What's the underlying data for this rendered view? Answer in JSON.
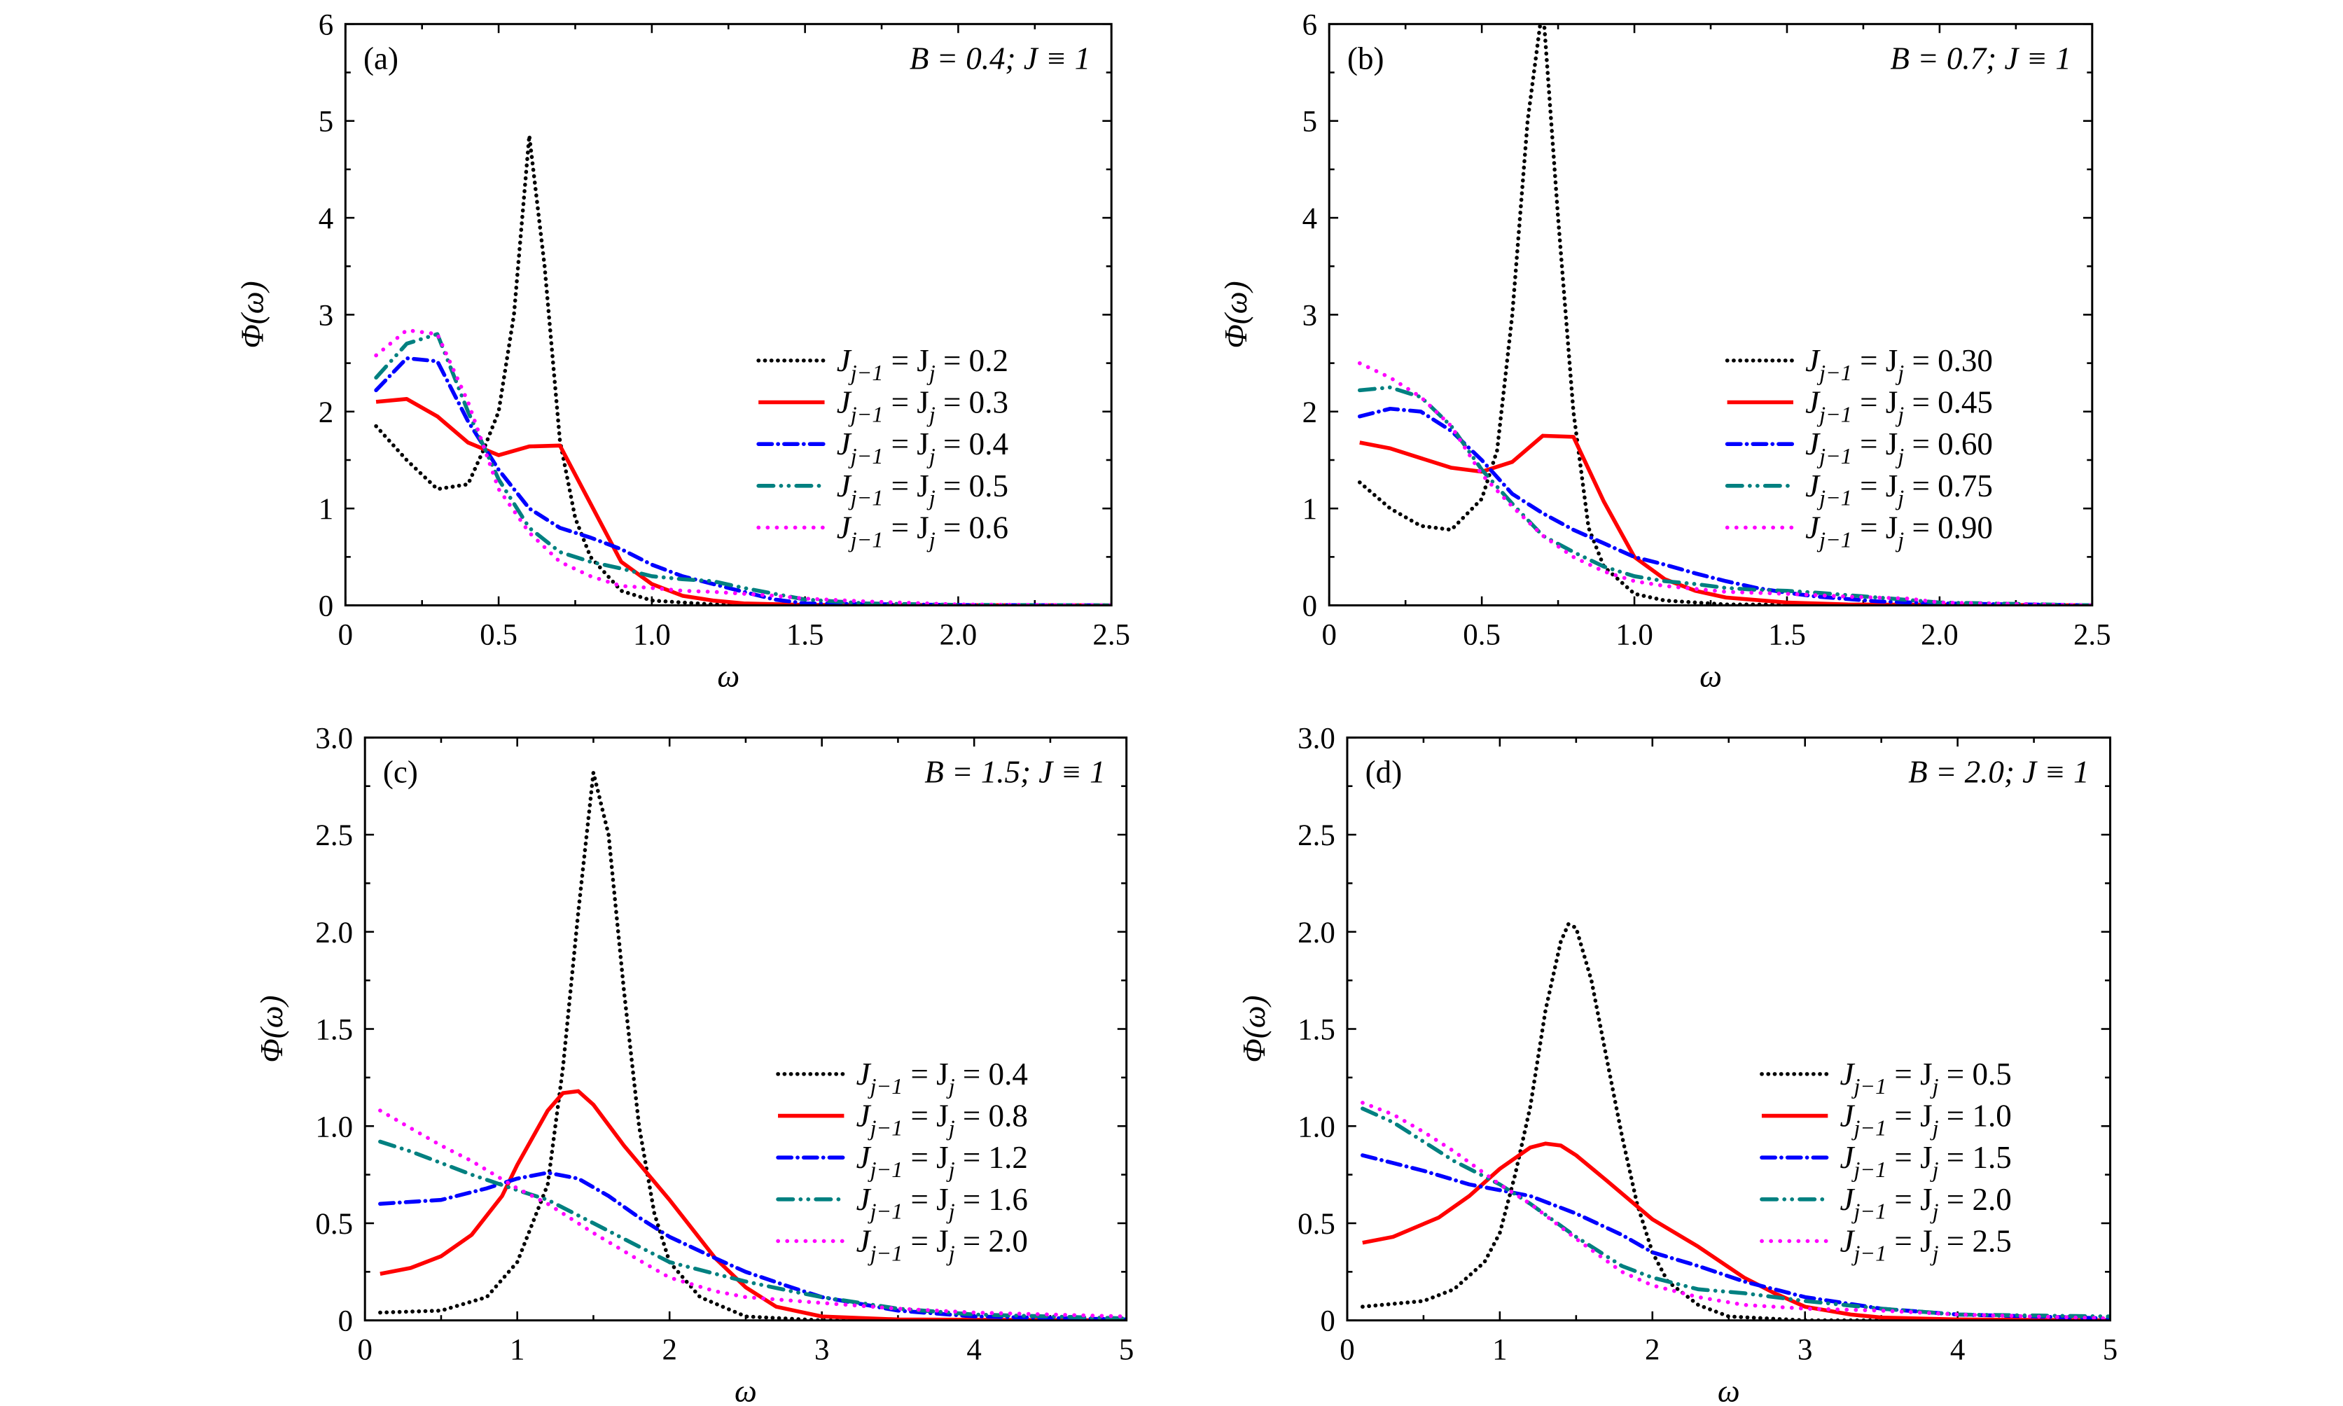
{
  "chart_data": [
    {
      "type": "line",
      "panel_label": "(a)",
      "annotation": "B = 0.4;  J ≡ 1",
      "xlabel": "ω",
      "ylabel": "Φ(ω)",
      "xlim": [
        0,
        2.5
      ],
      "ylim": [
        0,
        6
      ],
      "xticks": [
        "0",
        "0.5",
        "1.0",
        "1.5",
        "2.0",
        "2.5"
      ],
      "xtick_values": [
        0,
        0.5,
        1.0,
        1.5,
        2.0,
        2.5
      ],
      "yticks": [
        "0",
        "1",
        "2",
        "3",
        "4",
        "5",
        "6"
      ],
      "ytick_values": [
        0,
        1,
        2,
        3,
        4,
        5,
        6
      ],
      "x_minor": 0.25,
      "y_minor": 0.5,
      "legend_position": "center-right",
      "series": [
        {
          "name": "J_{j−1} = J_j = 0.2",
          "color": "#000000",
          "style": "dotted",
          "x": [
            0.1,
            0.2,
            0.3,
            0.4,
            0.45,
            0.5,
            0.55,
            0.6,
            0.65,
            0.7,
            0.75,
            0.8,
            0.9,
            1.0,
            1.2,
            1.5,
            2.5
          ],
          "y": [
            1.85,
            1.5,
            1.2,
            1.25,
            1.6,
            2.0,
            3.0,
            4.85,
            3.5,
            1.7,
            0.9,
            0.5,
            0.15,
            0.05,
            0.01,
            0.0,
            0.0
          ]
        },
        {
          "name": "J_{j−1} = J_j = 0.3",
          "color": "#ff0000",
          "style": "solid",
          "x": [
            0.1,
            0.2,
            0.3,
            0.4,
            0.5,
            0.6,
            0.7,
            0.8,
            0.9,
            1.0,
            1.1,
            1.2,
            1.3,
            1.5,
            2.5
          ],
          "y": [
            2.1,
            2.13,
            1.95,
            1.68,
            1.55,
            1.64,
            1.65,
            1.05,
            0.45,
            0.22,
            0.1,
            0.05,
            0.02,
            0.005,
            0.0
          ]
        },
        {
          "name": "J_{j−1} = J_j = 0.4",
          "color": "#0000ff",
          "style": "dashdot",
          "x": [
            0.1,
            0.2,
            0.3,
            0.4,
            0.5,
            0.6,
            0.7,
            0.8,
            0.9,
            1.0,
            1.1,
            1.2,
            1.3,
            1.4,
            1.5,
            2.0,
            2.5
          ],
          "y": [
            2.22,
            2.55,
            2.52,
            1.9,
            1.4,
            1.0,
            0.8,
            0.7,
            0.58,
            0.42,
            0.3,
            0.22,
            0.14,
            0.06,
            0.02,
            0.003,
            0.0
          ]
        },
        {
          "name": "J_{j−1} = J_j = 0.5",
          "color": "#008080",
          "style": "dashdotdot",
          "x": [
            0.1,
            0.2,
            0.3,
            0.4,
            0.5,
            0.6,
            0.7,
            0.8,
            0.9,
            1.0,
            1.1,
            1.2,
            1.3,
            1.4,
            1.5,
            1.7,
            2.0,
            2.5
          ],
          "y": [
            2.35,
            2.7,
            2.8,
            2.0,
            1.3,
            0.8,
            0.55,
            0.45,
            0.38,
            0.3,
            0.27,
            0.25,
            0.18,
            0.12,
            0.06,
            0.02,
            0.005,
            0.0
          ]
        },
        {
          "name": "J_{j−1} = J_j = 0.6",
          "color": "#ff00ff",
          "style": "sparse-dotted",
          "x": [
            0.1,
            0.2,
            0.3,
            0.4,
            0.5,
            0.6,
            0.7,
            0.8,
            0.9,
            1.0,
            1.1,
            1.2,
            1.3,
            1.4,
            1.5,
            1.7,
            2.0,
            2.5
          ],
          "y": [
            2.58,
            2.84,
            2.8,
            2.1,
            1.2,
            0.75,
            0.45,
            0.3,
            0.2,
            0.18,
            0.15,
            0.14,
            0.12,
            0.1,
            0.07,
            0.04,
            0.01,
            0.0
          ]
        }
      ]
    },
    {
      "type": "line",
      "panel_label": "(b)",
      "annotation": "B = 0.7;  J ≡ 1",
      "xlabel": "ω",
      "ylabel": "Φ(ω)",
      "xlim": [
        0,
        2.5
      ],
      "ylim": [
        0,
        6
      ],
      "xticks": [
        "0",
        "0.5",
        "1.0",
        "1.5",
        "2.0",
        "2.5"
      ],
      "xtick_values": [
        0,
        0.5,
        1.0,
        1.5,
        2.0,
        2.5
      ],
      "yticks": [
        "0",
        "1",
        "2",
        "3",
        "4",
        "5",
        "6"
      ],
      "ytick_values": [
        0,
        1,
        2,
        3,
        4,
        5,
        6
      ],
      "x_minor": 0.25,
      "y_minor": 0.5,
      "legend_position": "center-right",
      "series": [
        {
          "name": "J_{j−1} = J_j = 0.30",
          "color": "#000000",
          "style": "dotted",
          "x": [
            0.1,
            0.2,
            0.3,
            0.4,
            0.5,
            0.55,
            0.6,
            0.65,
            0.7,
            0.75,
            0.8,
            0.85,
            0.9,
            1.0,
            1.1,
            1.3,
            2.5
          ],
          "y": [
            1.27,
            1.0,
            0.82,
            0.78,
            1.1,
            1.6,
            3.0,
            5.0,
            6.2,
            4.0,
            2.0,
            0.8,
            0.4,
            0.12,
            0.05,
            0.01,
            0.0
          ]
        },
        {
          "name": "J_{j−1} = J_j = 0.45",
          "color": "#ff0000",
          "style": "solid",
          "x": [
            0.1,
            0.2,
            0.3,
            0.4,
            0.5,
            0.6,
            0.7,
            0.8,
            0.9,
            1.0,
            1.1,
            1.2,
            1.3,
            1.5,
            1.7,
            2.5
          ],
          "y": [
            1.68,
            1.62,
            1.52,
            1.42,
            1.38,
            1.48,
            1.75,
            1.74,
            1.07,
            0.5,
            0.27,
            0.15,
            0.08,
            0.03,
            0.01,
            0.0
          ]
        },
        {
          "name": "J_{j−1} = J_j = 0.60",
          "color": "#0000ff",
          "style": "dashdot",
          "x": [
            0.1,
            0.2,
            0.3,
            0.4,
            0.5,
            0.6,
            0.7,
            0.8,
            0.9,
            1.0,
            1.1,
            1.2,
            1.3,
            1.4,
            1.5,
            1.6,
            1.8,
            2.0,
            2.5
          ],
          "y": [
            1.95,
            2.03,
            2.0,
            1.8,
            1.5,
            1.15,
            0.95,
            0.78,
            0.64,
            0.5,
            0.42,
            0.33,
            0.25,
            0.18,
            0.13,
            0.09,
            0.04,
            0.02,
            0.0
          ]
        },
        {
          "name": "J_{j−1} = J_j = 0.75",
          "color": "#008080",
          "style": "dashdotdot",
          "x": [
            0.1,
            0.2,
            0.3,
            0.4,
            0.5,
            0.6,
            0.7,
            0.8,
            0.9,
            1.0,
            1.1,
            1.2,
            1.3,
            1.4,
            1.5,
            1.6,
            1.8,
            2.0,
            2.5
          ],
          "y": [
            2.22,
            2.25,
            2.15,
            1.85,
            1.4,
            1.05,
            0.72,
            0.55,
            0.4,
            0.3,
            0.25,
            0.22,
            0.18,
            0.16,
            0.15,
            0.13,
            0.08,
            0.03,
            0.0
          ]
        },
        {
          "name": "J_{j−1} = J_j = 0.90",
          "color": "#ff00ff",
          "style": "sparse-dotted",
          "x": [
            0.1,
            0.2,
            0.3,
            0.4,
            0.5,
            0.6,
            0.7,
            0.8,
            0.9,
            1.0,
            1.1,
            1.3,
            1.5,
            1.7,
            1.9,
            2.0,
            2.5
          ],
          "y": [
            2.5,
            2.35,
            2.15,
            1.85,
            1.35,
            1.02,
            0.72,
            0.5,
            0.35,
            0.25,
            0.2,
            0.14,
            0.12,
            0.09,
            0.07,
            0.03,
            0.0
          ]
        }
      ]
    },
    {
      "type": "line",
      "panel_label": "(c)",
      "annotation": "B = 1.5;  J ≡ 1",
      "xlabel": "ω",
      "ylabel": "Φ(ω)",
      "xlim": [
        0,
        5
      ],
      "ylim": [
        0,
        3
      ],
      "xticks": [
        "0",
        "1",
        "2",
        "3",
        "4",
        "5"
      ],
      "xtick_values": [
        0,
        1,
        2,
        3,
        4,
        5
      ],
      "yticks": [
        "0",
        "0.5",
        "1.0",
        "1.5",
        "2.0",
        "2.5",
        "3.0"
      ],
      "ytick_values": [
        0,
        0.5,
        1.0,
        1.5,
        2.0,
        2.5,
        3.0
      ],
      "x_minor": 0.5,
      "y_minor": 0.25,
      "legend_position": "center-right",
      "series": [
        {
          "name": "J_{j−1} = J_j = 0.4",
          "color": "#000000",
          "style": "dotted",
          "x": [
            0.1,
            0.5,
            0.8,
            1.0,
            1.2,
            1.3,
            1.4,
            1.5,
            1.6,
            1.7,
            1.8,
            1.9,
            2.0,
            2.2,
            2.5,
            3.0,
            5.0
          ],
          "y": [
            0.04,
            0.05,
            0.12,
            0.3,
            0.7,
            1.3,
            2.1,
            2.82,
            2.5,
            1.7,
            1.0,
            0.55,
            0.3,
            0.12,
            0.02,
            0.0,
            0.0
          ]
        },
        {
          "name": "J_{j−1} = J_j = 0.8",
          "color": "#ff0000",
          "style": "solid",
          "x": [
            0.1,
            0.3,
            0.5,
            0.7,
            0.9,
            1.0,
            1.2,
            1.3,
            1.4,
            1.5,
            1.7,
            2.0,
            2.3,
            2.5,
            2.7,
            3.0,
            3.5,
            5.0
          ],
          "y": [
            0.24,
            0.27,
            0.33,
            0.44,
            0.64,
            0.8,
            1.08,
            1.17,
            1.18,
            1.11,
            0.9,
            0.62,
            0.32,
            0.17,
            0.07,
            0.02,
            0.005,
            0.0
          ]
        },
        {
          "name": "J_{j−1} = J_j = 1.2",
          "color": "#0000ff",
          "style": "dashdot",
          "x": [
            0.1,
            0.5,
            0.8,
            1.0,
            1.2,
            1.4,
            1.6,
            1.8,
            2.0,
            2.3,
            2.5,
            2.8,
            3.0,
            3.5,
            4.0,
            5.0
          ],
          "y": [
            0.6,
            0.62,
            0.68,
            0.73,
            0.76,
            0.73,
            0.64,
            0.53,
            0.43,
            0.32,
            0.25,
            0.17,
            0.12,
            0.05,
            0.02,
            0.005
          ]
        },
        {
          "name": "J_{j−1} = J_j = 1.6",
          "color": "#008080",
          "style": "dashdotdot",
          "x": [
            0.1,
            0.3,
            0.5,
            0.7,
            1.0,
            1.2,
            1.5,
            1.8,
            2.0,
            2.3,
            2.5,
            2.8,
            3.0,
            3.5,
            4.0,
            5.0
          ],
          "y": [
            0.92,
            0.87,
            0.81,
            0.75,
            0.67,
            0.62,
            0.5,
            0.38,
            0.3,
            0.24,
            0.2,
            0.15,
            0.12,
            0.06,
            0.03,
            0.01
          ]
        },
        {
          "name": "J_{j−1} = J_j = 2.0",
          "color": "#ff00ff",
          "style": "sparse-dotted",
          "x": [
            0.1,
            0.3,
            0.5,
            0.7,
            1.0,
            1.2,
            1.5,
            1.8,
            2.0,
            2.3,
            2.5,
            3.0,
            3.5,
            4.0,
            5.0
          ],
          "y": [
            1.08,
            0.99,
            0.9,
            0.82,
            0.68,
            0.6,
            0.45,
            0.31,
            0.22,
            0.15,
            0.12,
            0.09,
            0.06,
            0.04,
            0.02
          ]
        }
      ]
    },
    {
      "type": "line",
      "panel_label": "(d)",
      "annotation": "B = 2.0;  J ≡ 1",
      "xlabel": "ω",
      "ylabel": "Φ(ω)",
      "xlim": [
        0,
        5
      ],
      "ylim": [
        0,
        3
      ],
      "xticks": [
        "0",
        "1",
        "2",
        "3",
        "4",
        "5"
      ],
      "xtick_values": [
        0,
        1,
        2,
        3,
        4,
        5
      ],
      "yticks": [
        "0",
        "0.5",
        "1.0",
        "1.5",
        "2.0",
        "2.5",
        "3.0"
      ],
      "ytick_values": [
        0,
        0.5,
        1.0,
        1.5,
        2.0,
        2.5,
        3.0
      ],
      "x_minor": 0.5,
      "y_minor": 0.25,
      "legend_position": "center-right",
      "series": [
        {
          "name": "J_{j−1} = J_j = 0.5",
          "color": "#000000",
          "style": "dotted",
          "x": [
            0.1,
            0.5,
            0.7,
            0.9,
            1.0,
            1.1,
            1.2,
            1.3,
            1.4,
            1.45,
            1.5,
            1.6,
            1.7,
            1.8,
            1.9,
            2.0,
            2.1,
            2.3,
            2.5,
            3.0,
            5.0
          ],
          "y": [
            0.07,
            0.1,
            0.16,
            0.3,
            0.45,
            0.75,
            1.1,
            1.6,
            1.95,
            2.04,
            2.02,
            1.75,
            1.35,
            0.95,
            0.6,
            0.35,
            0.2,
            0.08,
            0.02,
            0.0,
            0.0
          ]
        },
        {
          "name": "J_{j−1} = J_j = 1.0",
          "color": "#ff0000",
          "style": "solid",
          "x": [
            0.1,
            0.3,
            0.6,
            0.8,
            1.0,
            1.2,
            1.3,
            1.4,
            1.5,
            1.7,
            2.0,
            2.3,
            2.6,
            2.8,
            3.0,
            3.3,
            3.5,
            4.0,
            5.0
          ],
          "y": [
            0.4,
            0.43,
            0.53,
            0.64,
            0.78,
            0.89,
            0.91,
            0.9,
            0.85,
            0.72,
            0.52,
            0.38,
            0.22,
            0.14,
            0.07,
            0.03,
            0.015,
            0.005,
            0.0
          ]
        },
        {
          "name": "J_{j−1} = J_j = 1.5",
          "color": "#0000ff",
          "style": "dashdot",
          "x": [
            0.1,
            0.5,
            0.8,
            1.0,
            1.2,
            1.5,
            1.8,
            2.0,
            2.3,
            2.6,
            3.0,
            3.5,
            4.0,
            5.0
          ],
          "y": [
            0.85,
            0.77,
            0.7,
            0.67,
            0.64,
            0.55,
            0.44,
            0.35,
            0.28,
            0.2,
            0.12,
            0.06,
            0.03,
            0.01
          ]
        },
        {
          "name": "J_{j−1} = J_j = 2.0",
          "color": "#008080",
          "style": "dashdotdot",
          "x": [
            0.1,
            0.3,
            0.5,
            0.7,
            1.0,
            1.2,
            1.5,
            1.8,
            2.0,
            2.3,
            2.6,
            3.0,
            3.5,
            4.0,
            5.0
          ],
          "y": [
            1.09,
            1.02,
            0.92,
            0.82,
            0.7,
            0.6,
            0.43,
            0.28,
            0.22,
            0.16,
            0.14,
            0.1,
            0.06,
            0.03,
            0.02
          ]
        },
        {
          "name": "J_{j−1} = J_j = 2.5",
          "color": "#ff00ff",
          "style": "sparse-dotted",
          "x": [
            0.1,
            0.3,
            0.5,
            0.7,
            1.0,
            1.2,
            1.5,
            1.8,
            2.0,
            2.3,
            2.6,
            3.0,
            3.5,
            4.0,
            5.0
          ],
          "y": [
            1.12,
            1.06,
            0.97,
            0.87,
            0.7,
            0.6,
            0.42,
            0.25,
            0.18,
            0.12,
            0.08,
            0.06,
            0.05,
            0.03,
            0.01
          ]
        }
      ]
    }
  ]
}
